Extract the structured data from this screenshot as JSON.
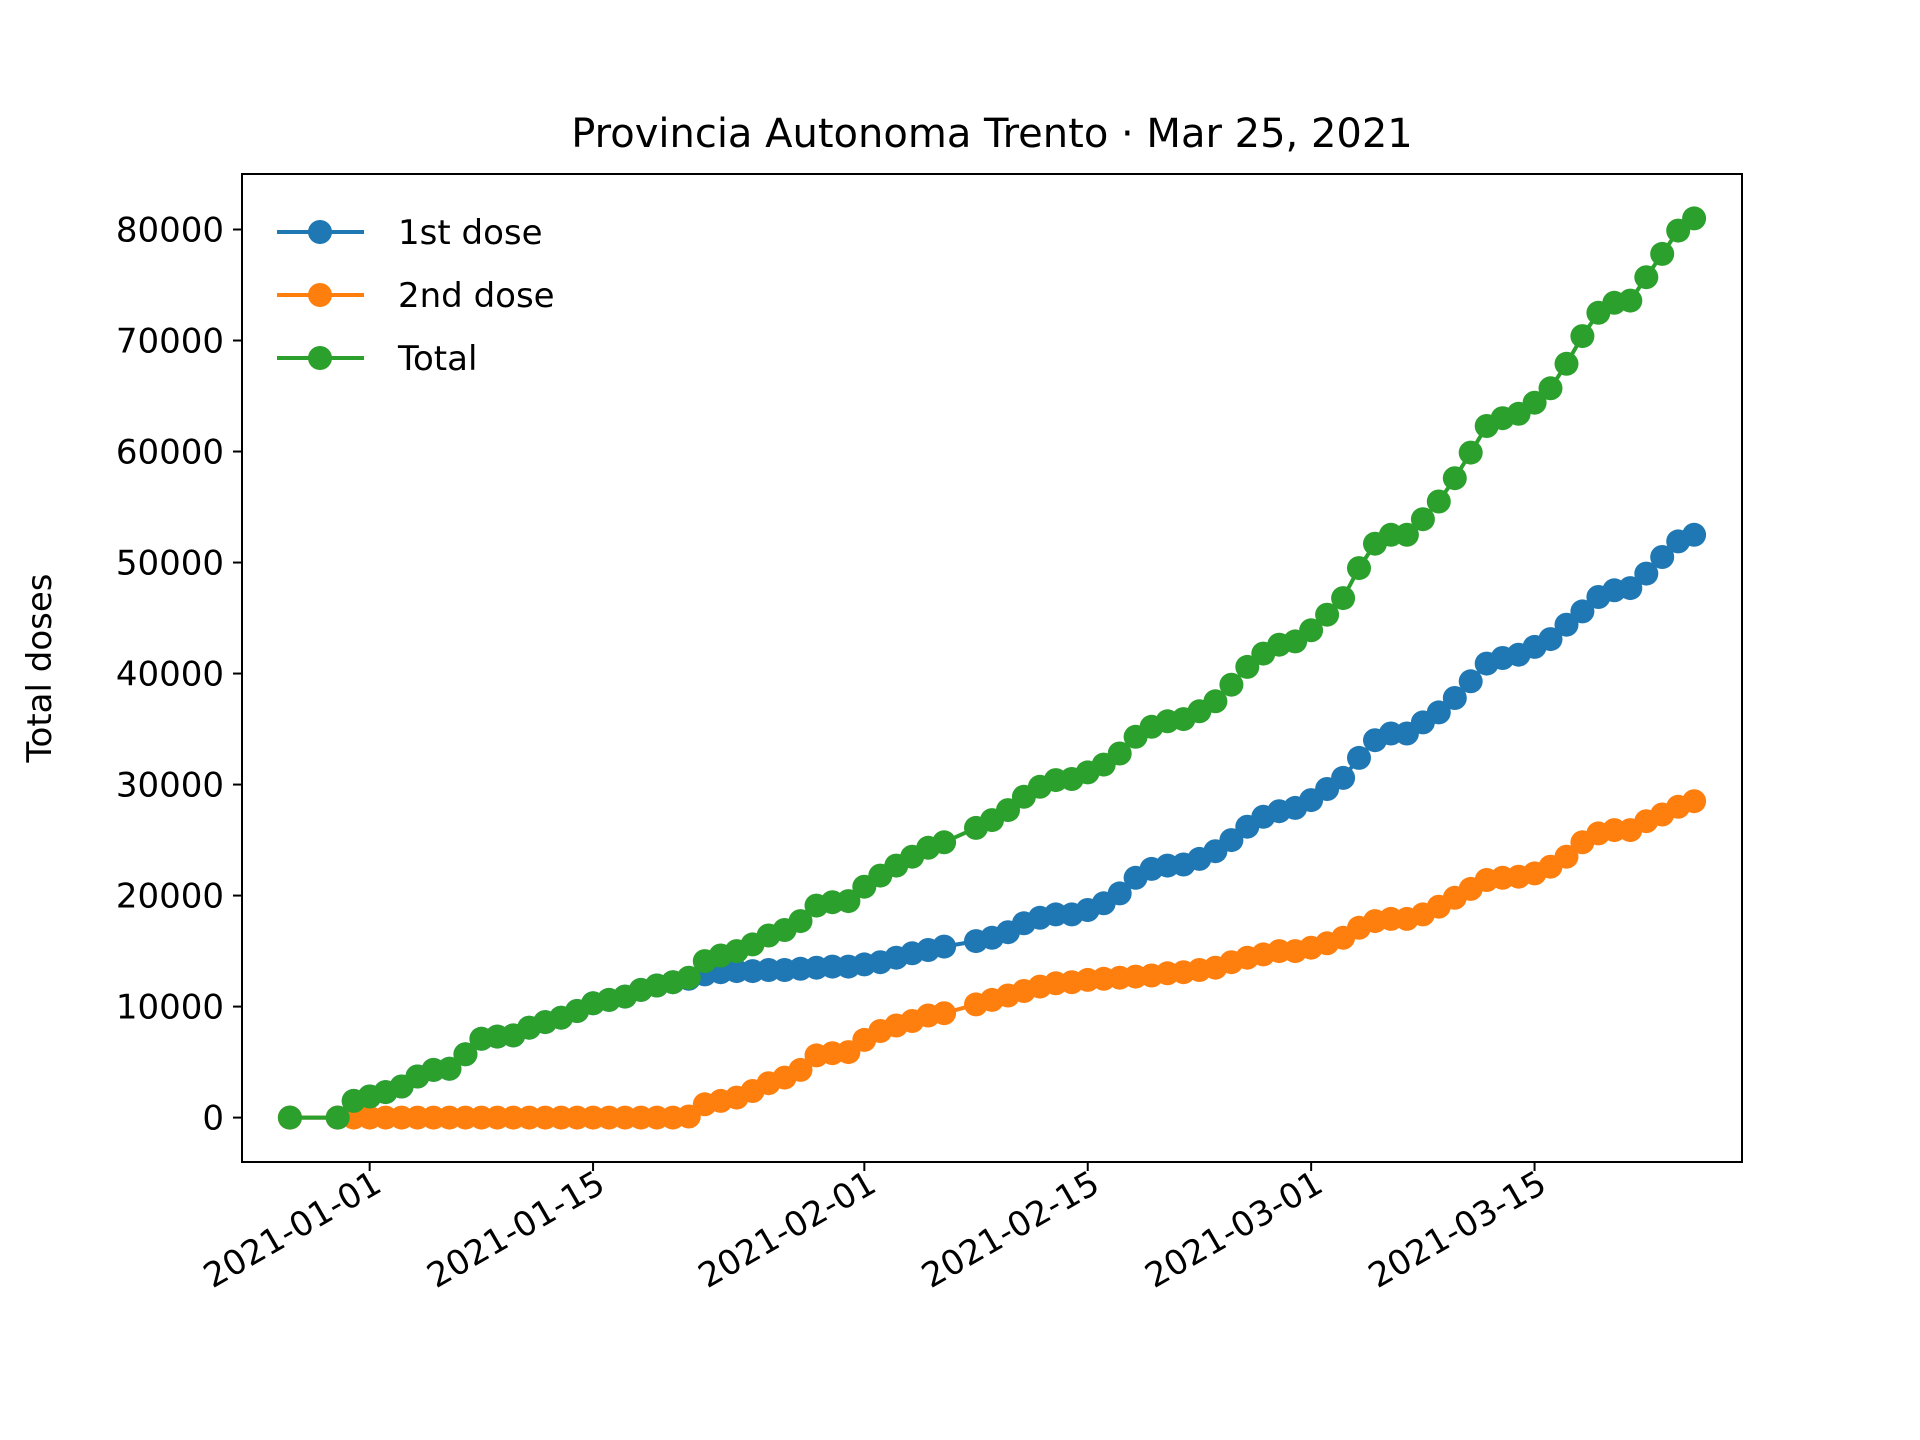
{
  "chart_data": {
    "type": "line",
    "title": "Provincia Autonoma Trento · Mar 25, 2021",
    "xlabel": "",
    "ylabel": "Total doses",
    "xlim": [
      "2020-12-24",
      "2021-03-28"
    ],
    "ylim": [
      -4000,
      85000
    ],
    "x_ticks": [
      "2021-01-01",
      "2021-01-15",
      "2021-02-01",
      "2021-02-15",
      "2021-03-01",
      "2021-03-15"
    ],
    "y_ticks": [
      0,
      10000,
      20000,
      30000,
      40000,
      50000,
      60000,
      70000,
      80000
    ],
    "y_tick_labels": [
      "0",
      "10000",
      "20000",
      "30000",
      "40000",
      "50000",
      "60000",
      "70000",
      "80000"
    ],
    "grid": false,
    "legend": "top-left",
    "series": [
      {
        "name": "1st dose",
        "color": "#1f77b4",
        "points": [
          [
            "2020-12-27",
            0
          ],
          [
            "2020-12-30",
            0
          ],
          [
            "2020-12-31",
            1500
          ],
          [
            "2021-01-01",
            1900
          ],
          [
            "2021-01-02",
            2300
          ],
          [
            "2021-01-03",
            2800
          ],
          [
            "2021-01-04",
            3700
          ],
          [
            "2021-01-05",
            4300
          ],
          [
            "2021-01-06",
            4400
          ],
          [
            "2021-01-07",
            5700
          ],
          [
            "2021-01-08",
            7100
          ],
          [
            "2021-01-09",
            7300
          ],
          [
            "2021-01-10",
            7400
          ],
          [
            "2021-01-11",
            8100
          ],
          [
            "2021-01-12",
            8600
          ],
          [
            "2021-01-13",
            9000
          ],
          [
            "2021-01-14",
            9600
          ],
          [
            "2021-01-15",
            10300
          ],
          [
            "2021-01-16",
            10600
          ],
          [
            "2021-01-17",
            10900
          ],
          [
            "2021-01-18",
            11500
          ],
          [
            "2021-01-19",
            11900
          ],
          [
            "2021-01-20",
            12200
          ],
          [
            "2021-01-21",
            12500
          ],
          [
            "2021-01-22",
            12900
          ],
          [
            "2021-01-23",
            13100
          ],
          [
            "2021-01-24",
            13200
          ],
          [
            "2021-01-25",
            13200
          ],
          [
            "2021-01-26",
            13300
          ],
          [
            "2021-01-27",
            13300
          ],
          [
            "2021-01-28",
            13400
          ],
          [
            "2021-01-29",
            13500
          ],
          [
            "2021-01-30",
            13600
          ],
          [
            "2021-01-31",
            13600
          ],
          [
            "2021-02-01",
            13800
          ],
          [
            "2021-02-02",
            14000
          ],
          [
            "2021-02-03",
            14400
          ],
          [
            "2021-02-04",
            14800
          ],
          [
            "2021-02-05",
            15100
          ],
          [
            "2021-02-06",
            15400
          ],
          [
            "2021-02-08",
            15900
          ],
          [
            "2021-02-09",
            16200
          ],
          [
            "2021-02-10",
            16700
          ],
          [
            "2021-02-11",
            17500
          ],
          [
            "2021-02-12",
            18000
          ],
          [
            "2021-02-13",
            18300
          ],
          [
            "2021-02-14",
            18300
          ],
          [
            "2021-02-15",
            18700
          ],
          [
            "2021-02-16",
            19300
          ],
          [
            "2021-02-17",
            20200
          ],
          [
            "2021-02-18",
            21600
          ],
          [
            "2021-02-19",
            22400
          ],
          [
            "2021-02-20",
            22700
          ],
          [
            "2021-02-21",
            22800
          ],
          [
            "2021-02-22",
            23300
          ],
          [
            "2021-02-23",
            24000
          ],
          [
            "2021-02-24",
            25000
          ],
          [
            "2021-02-25",
            26200
          ],
          [
            "2021-02-26",
            27100
          ],
          [
            "2021-02-27",
            27600
          ],
          [
            "2021-02-28",
            27900
          ],
          [
            "2021-03-01",
            28600
          ],
          [
            "2021-03-02",
            29600
          ],
          [
            "2021-03-03",
            30600
          ],
          [
            "2021-03-04",
            32400
          ],
          [
            "2021-03-05",
            34000
          ],
          [
            "2021-03-06",
            34600
          ],
          [
            "2021-03-07",
            34600
          ],
          [
            "2021-03-08",
            35600
          ],
          [
            "2021-03-09",
            36500
          ],
          [
            "2021-03-10",
            37800
          ],
          [
            "2021-03-11",
            39300
          ],
          [
            "2021-03-12",
            40900
          ],
          [
            "2021-03-13",
            41400
          ],
          [
            "2021-03-14",
            41700
          ],
          [
            "2021-03-15",
            42400
          ],
          [
            "2021-03-16",
            43100
          ],
          [
            "2021-03-17",
            44400
          ],
          [
            "2021-03-18",
            45600
          ],
          [
            "2021-03-19",
            46900
          ],
          [
            "2021-03-20",
            47500
          ],
          [
            "2021-03-21",
            47700
          ],
          [
            "2021-03-22",
            49000
          ],
          [
            "2021-03-23",
            50500
          ],
          [
            "2021-03-24",
            51900
          ],
          [
            "2021-03-25",
            52500
          ]
        ]
      },
      {
        "name": "2nd dose",
        "color": "#ff7f0e",
        "points": [
          [
            "2020-12-27",
            0
          ],
          [
            "2020-12-30",
            0
          ],
          [
            "2020-12-31",
            0
          ],
          [
            "2021-01-01",
            0
          ],
          [
            "2021-01-02",
            0
          ],
          [
            "2021-01-03",
            0
          ],
          [
            "2021-01-04",
            0
          ],
          [
            "2021-01-05",
            0
          ],
          [
            "2021-01-06",
            0
          ],
          [
            "2021-01-07",
            0
          ],
          [
            "2021-01-08",
            0
          ],
          [
            "2021-01-09",
            0
          ],
          [
            "2021-01-10",
            0
          ],
          [
            "2021-01-11",
            0
          ],
          [
            "2021-01-12",
            0
          ],
          [
            "2021-01-13",
            0
          ],
          [
            "2021-01-14",
            0
          ],
          [
            "2021-01-15",
            0
          ],
          [
            "2021-01-16",
            0
          ],
          [
            "2021-01-17",
            0
          ],
          [
            "2021-01-18",
            0
          ],
          [
            "2021-01-19",
            0
          ],
          [
            "2021-01-20",
            0
          ],
          [
            "2021-01-21",
            100
          ],
          [
            "2021-01-22",
            1200
          ],
          [
            "2021-01-23",
            1500
          ],
          [
            "2021-01-24",
            1800
          ],
          [
            "2021-01-25",
            2400
          ],
          [
            "2021-01-26",
            3100
          ],
          [
            "2021-01-27",
            3600
          ],
          [
            "2021-01-28",
            4300
          ],
          [
            "2021-01-29",
            5600
          ],
          [
            "2021-01-30",
            5800
          ],
          [
            "2021-01-31",
            5900
          ],
          [
            "2021-02-01",
            7000
          ],
          [
            "2021-02-02",
            7800
          ],
          [
            "2021-02-03",
            8300
          ],
          [
            "2021-02-04",
            8700
          ],
          [
            "2021-02-05",
            9200
          ],
          [
            "2021-02-06",
            9400
          ],
          [
            "2021-02-08",
            10200
          ],
          [
            "2021-02-09",
            10600
          ],
          [
            "2021-02-10",
            11000
          ],
          [
            "2021-02-11",
            11400
          ],
          [
            "2021-02-12",
            11800
          ],
          [
            "2021-02-13",
            12100
          ],
          [
            "2021-02-14",
            12200
          ],
          [
            "2021-02-15",
            12400
          ],
          [
            "2021-02-16",
            12500
          ],
          [
            "2021-02-17",
            12600
          ],
          [
            "2021-02-18",
            12700
          ],
          [
            "2021-02-19",
            12800
          ],
          [
            "2021-02-20",
            13000
          ],
          [
            "2021-02-21",
            13100
          ],
          [
            "2021-02-22",
            13300
          ],
          [
            "2021-02-23",
            13500
          ],
          [
            "2021-02-24",
            14000
          ],
          [
            "2021-02-25",
            14400
          ],
          [
            "2021-02-26",
            14700
          ],
          [
            "2021-02-27",
            15000
          ],
          [
            "2021-02-28",
            15000
          ],
          [
            "2021-03-01",
            15300
          ],
          [
            "2021-03-02",
            15700
          ],
          [
            "2021-03-03",
            16200
          ],
          [
            "2021-03-04",
            17100
          ],
          [
            "2021-03-05",
            17700
          ],
          [
            "2021-03-06",
            17900
          ],
          [
            "2021-03-07",
            17900
          ],
          [
            "2021-03-08",
            18300
          ],
          [
            "2021-03-09",
            19000
          ],
          [
            "2021-03-10",
            19800
          ],
          [
            "2021-03-11",
            20600
          ],
          [
            "2021-03-12",
            21400
          ],
          [
            "2021-03-13",
            21600
          ],
          [
            "2021-03-14",
            21700
          ],
          [
            "2021-03-15",
            22000
          ],
          [
            "2021-03-16",
            22600
          ],
          [
            "2021-03-17",
            23500
          ],
          [
            "2021-03-18",
            24800
          ],
          [
            "2021-03-19",
            25600
          ],
          [
            "2021-03-20",
            25900
          ],
          [
            "2021-03-21",
            25900
          ],
          [
            "2021-03-22",
            26700
          ],
          [
            "2021-03-23",
            27300
          ],
          [
            "2021-03-24",
            28000
          ],
          [
            "2021-03-25",
            28500
          ]
        ]
      },
      {
        "name": "Total",
        "color": "#2ca02c",
        "points": [
          [
            "2020-12-27",
            0
          ],
          [
            "2020-12-30",
            0
          ],
          [
            "2020-12-31",
            1500
          ],
          [
            "2021-01-01",
            1900
          ],
          [
            "2021-01-02",
            2300
          ],
          [
            "2021-01-03",
            2800
          ],
          [
            "2021-01-04",
            3700
          ],
          [
            "2021-01-05",
            4300
          ],
          [
            "2021-01-06",
            4400
          ],
          [
            "2021-01-07",
            5700
          ],
          [
            "2021-01-08",
            7100
          ],
          [
            "2021-01-09",
            7300
          ],
          [
            "2021-01-10",
            7400
          ],
          [
            "2021-01-11",
            8100
          ],
          [
            "2021-01-12",
            8600
          ],
          [
            "2021-01-13",
            9000
          ],
          [
            "2021-01-14",
            9600
          ],
          [
            "2021-01-15",
            10300
          ],
          [
            "2021-01-16",
            10600
          ],
          [
            "2021-01-17",
            10900
          ],
          [
            "2021-01-18",
            11500
          ],
          [
            "2021-01-19",
            11900
          ],
          [
            "2021-01-20",
            12200
          ],
          [
            "2021-01-21",
            12600
          ],
          [
            "2021-01-22",
            14100
          ],
          [
            "2021-01-23",
            14600
          ],
          [
            "2021-01-24",
            15000
          ],
          [
            "2021-01-25",
            15600
          ],
          [
            "2021-01-26",
            16400
          ],
          [
            "2021-01-27",
            16900
          ],
          [
            "2021-01-28",
            17700
          ],
          [
            "2021-01-29",
            19100
          ],
          [
            "2021-01-30",
            19400
          ],
          [
            "2021-01-31",
            19500
          ],
          [
            "2021-02-01",
            20800
          ],
          [
            "2021-02-02",
            21800
          ],
          [
            "2021-02-03",
            22700
          ],
          [
            "2021-02-04",
            23500
          ],
          [
            "2021-02-05",
            24300
          ],
          [
            "2021-02-06",
            24800
          ],
          [
            "2021-02-08",
            26100
          ],
          [
            "2021-02-09",
            26800
          ],
          [
            "2021-02-10",
            27700
          ],
          [
            "2021-02-11",
            28900
          ],
          [
            "2021-02-12",
            29800
          ],
          [
            "2021-02-13",
            30400
          ],
          [
            "2021-02-14",
            30500
          ],
          [
            "2021-02-15",
            31100
          ],
          [
            "2021-02-16",
            31800
          ],
          [
            "2021-02-17",
            32800
          ],
          [
            "2021-02-18",
            34300
          ],
          [
            "2021-02-19",
            35200
          ],
          [
            "2021-02-20",
            35700
          ],
          [
            "2021-02-21",
            35900
          ],
          [
            "2021-02-22",
            36600
          ],
          [
            "2021-02-23",
            37500
          ],
          [
            "2021-02-24",
            39000
          ],
          [
            "2021-02-25",
            40600
          ],
          [
            "2021-02-26",
            41800
          ],
          [
            "2021-02-27",
            42600
          ],
          [
            "2021-02-28",
            42900
          ],
          [
            "2021-03-01",
            43900
          ],
          [
            "2021-03-02",
            45300
          ],
          [
            "2021-03-03",
            46800
          ],
          [
            "2021-03-04",
            49500
          ],
          [
            "2021-03-05",
            51700
          ],
          [
            "2021-03-06",
            52500
          ],
          [
            "2021-03-07",
            52500
          ],
          [
            "2021-03-08",
            53900
          ],
          [
            "2021-03-09",
            55500
          ],
          [
            "2021-03-10",
            57600
          ],
          [
            "2021-03-11",
            59900
          ],
          [
            "2021-03-12",
            62300
          ],
          [
            "2021-03-13",
            63000
          ],
          [
            "2021-03-14",
            63400
          ],
          [
            "2021-03-15",
            64400
          ],
          [
            "2021-03-16",
            65700
          ],
          [
            "2021-03-17",
            67900
          ],
          [
            "2021-03-18",
            70400
          ],
          [
            "2021-03-19",
            72500
          ],
          [
            "2021-03-20",
            73400
          ],
          [
            "2021-03-21",
            73600
          ],
          [
            "2021-03-22",
            75700
          ],
          [
            "2021-03-23",
            77800
          ],
          [
            "2021-03-24",
            79900
          ],
          [
            "2021-03-25",
            81000
          ]
        ]
      }
    ]
  }
}
